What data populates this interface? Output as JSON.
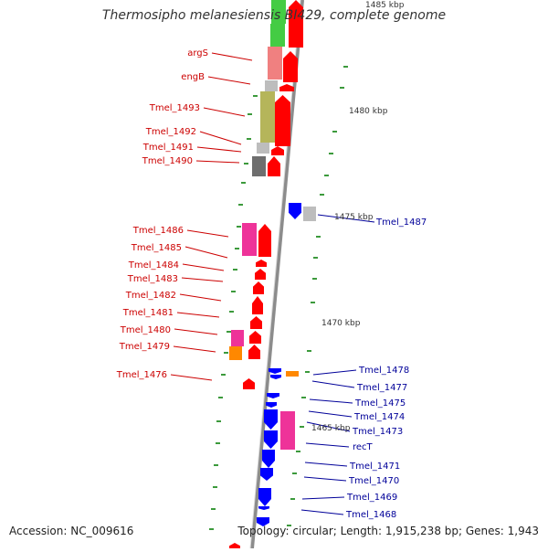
{
  "header": {
    "title": "Thermosipho melanesiensis BI429, complete genome"
  },
  "footer": {
    "accession": "Accession: NC_009616",
    "summary": "Topology: circular; Length: 1,915,238 bp; Genes: 1,943"
  },
  "colors": {
    "backbone": "#8c8c8c",
    "forward_cds": "#ff0000",
    "reverse_cds": "#0000ff",
    "left_label": "#cc0000",
    "right_label": "#000099",
    "tick": "#3c9a3c",
    "cog_green": "#44cc44",
    "cog_salmon": "#f08080",
    "cog_olive": "#b5b55a",
    "cog_grey": "#bdbdbd",
    "cog_darkgrey": "#6e6e6e",
    "cog_pink": "#ee3399",
    "cog_orange": "#ff8800"
  },
  "scale_labels": [
    "1485 kbp",
    "1480 kbp",
    "1475 kbp",
    "1470 kbp",
    "1465 kbp"
  ],
  "left_genes": [
    "argS",
    "engB",
    "Tmel_1493",
    "Tmel_1492",
    "Tmel_1491",
    "Tmel_1490",
    "Tmel_1486",
    "Tmel_1485",
    "Tmel_1484",
    "Tmel_1483",
    "Tmel_1482",
    "Tmel_1481",
    "Tmel_1480",
    "Tmel_1479",
    "Tmel_1476"
  ],
  "right_genes": [
    "Tmel_1487",
    "Tmel_1478",
    "Tmel_1477",
    "Tmel_1475",
    "Tmel_1474",
    "Tmel_1473",
    "recT",
    "Tmel_1471",
    "Tmel_1470",
    "Tmel_1469",
    "Tmel_1468"
  ]
}
